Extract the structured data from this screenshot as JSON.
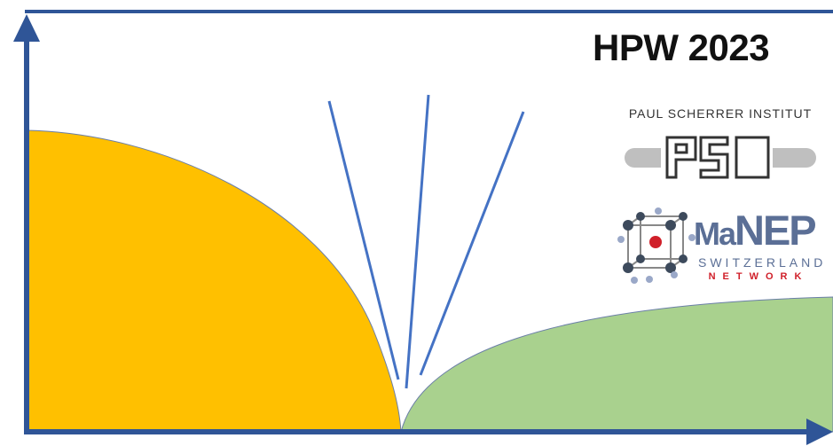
{
  "header": {
    "title": "HPW 2023"
  },
  "logos": {
    "psi": {
      "label": "PAUL SCHERRER INSTITUT",
      "wordmark": "PSI"
    },
    "manep": {
      "word_ma": "Ma",
      "word_nep": "NEP",
      "line1": "SWITZERLAND",
      "line2": "NETWORK"
    }
  },
  "colors": {
    "axis": "#2f5597",
    "left_region": "#ffc000",
    "right_region": "#a9d18e",
    "lines": "#4472c4",
    "manep_blue": "#5b6f96",
    "manep_red": "#d0202a"
  }
}
